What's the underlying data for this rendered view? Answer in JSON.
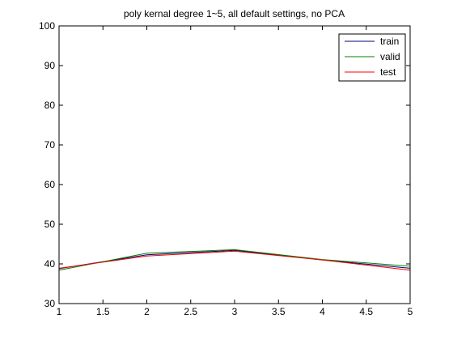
{
  "chart_data": {
    "type": "line",
    "title": "poly kernal degree 1~5, all default settings, no PCA",
    "xlabel": "",
    "ylabel": "",
    "xlim": [
      1,
      5
    ],
    "ylim": [
      30,
      100
    ],
    "x": [
      1,
      2,
      3,
      4,
      5
    ],
    "x_ticks": [
      1,
      1.5,
      2,
      2.5,
      3,
      3.5,
      4,
      4.5,
      5
    ],
    "y_ticks": [
      30,
      40,
      50,
      60,
      70,
      80,
      90,
      100
    ],
    "grid": false,
    "legend_position": "top-right",
    "series": [
      {
        "name": "train",
        "color": "#00007f",
        "values": [
          38.8,
          42.3,
          43.4,
          41.0,
          38.9
        ]
      },
      {
        "name": "valid",
        "color": "#008000",
        "values": [
          38.4,
          42.7,
          43.6,
          41.1,
          39.4
        ]
      },
      {
        "name": "test",
        "color": "#ff0000",
        "values": [
          38.9,
          42.0,
          43.2,
          41.0,
          38.4
        ]
      }
    ]
  }
}
